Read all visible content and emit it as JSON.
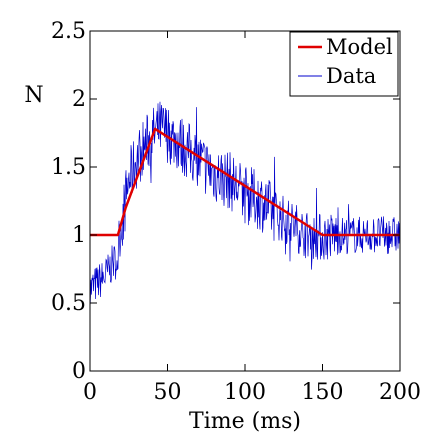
{
  "chart_data": {
    "type": "line",
    "xlabel": "Time (ms)",
    "ylabel": "N",
    "xlim": [
      0,
      200
    ],
    "ylim": [
      0,
      2.5
    ],
    "xticks": [
      0,
      50,
      100,
      150,
      200
    ],
    "xtick_labels": [
      "0",
      "50",
      "100",
      "150",
      "200"
    ],
    "yticks": [
      0,
      0.5,
      1,
      1.5,
      2,
      2.5
    ],
    "ytick_labels": [
      "0",
      "0.5",
      "1",
      "1.5",
      "2",
      "2.5"
    ],
    "grid": false,
    "legend_position": "top-right",
    "series": [
      {
        "name": "Model",
        "color": "#e00000",
        "style": "solid",
        "x": [
          0,
          18,
          23,
          42,
          150,
          200
        ],
        "y": [
          1.0,
          1.0,
          1.2,
          1.78,
          1.0,
          1.0
        ]
      },
      {
        "name": "Data",
        "color": "#0000cc",
        "style": "noisy",
        "x": [
          0,
          5,
          10,
          15,
          18,
          20,
          25,
          30,
          35,
          40,
          45,
          50,
          60,
          70,
          80,
          90,
          100,
          110,
          120,
          130,
          140,
          150,
          160,
          170,
          180,
          190,
          200
        ],
        "y": [
          0.6,
          0.65,
          0.7,
          0.8,
          0.82,
          1.05,
          1.4,
          1.55,
          1.65,
          1.72,
          1.78,
          1.75,
          1.65,
          1.55,
          1.45,
          1.4,
          1.3,
          1.25,
          1.15,
          1.08,
          1.0,
          0.98,
          1.0,
          1.0,
          1.0,
          1.0,
          1.0
        ]
      }
    ]
  }
}
